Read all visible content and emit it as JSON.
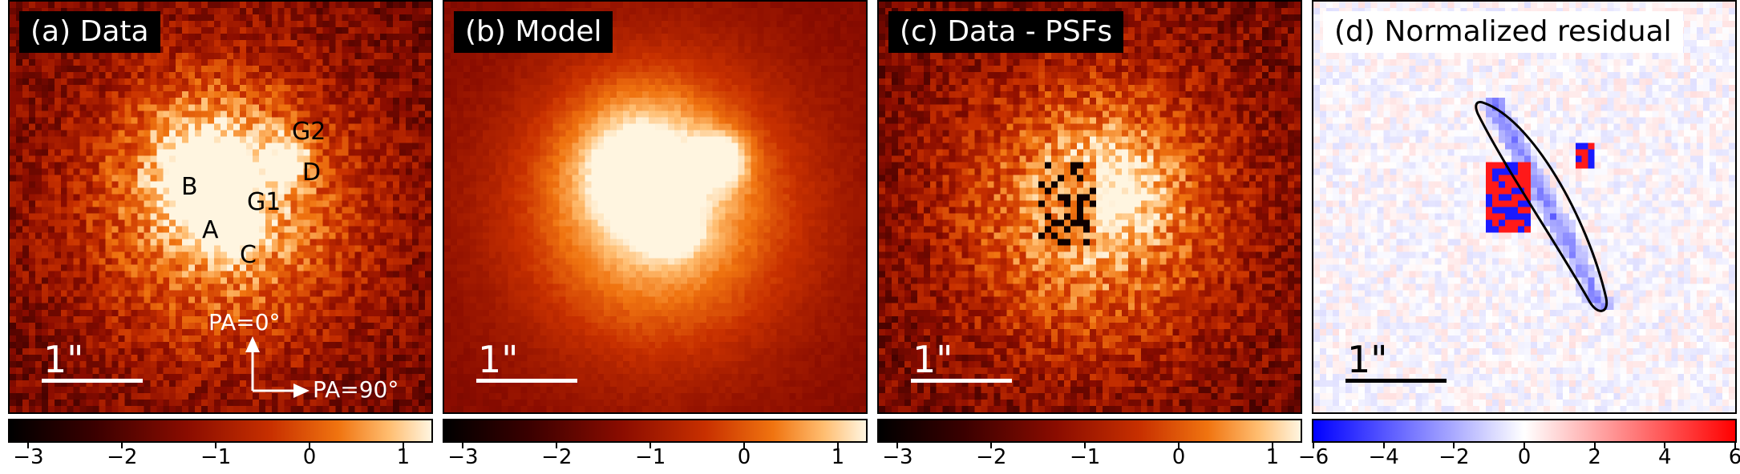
{
  "panels": [
    {
      "id": "a",
      "title": "(a) Data",
      "scale_label": "1\"",
      "cmap": "heat",
      "colorbar": {
        "min": -3.2,
        "max": 1.3,
        "ticks": [
          "−3",
          "−2",
          "−1",
          "0",
          "1"
        ],
        "tick_values": [
          -3,
          -2,
          -1,
          0,
          1
        ]
      }
    },
    {
      "id": "b",
      "title": "(b) Model",
      "scale_label": "1\"",
      "cmap": "heat",
      "colorbar": {
        "min": -3.2,
        "max": 1.3,
        "ticks": [
          "−3",
          "−2",
          "−1",
          "0",
          "1"
        ],
        "tick_values": [
          -3,
          -2,
          -1,
          0,
          1
        ]
      }
    },
    {
      "id": "c",
      "title": "(c) Data - PSFs",
      "scale_label": "1\"",
      "cmap": "heat",
      "colorbar": {
        "min": -3.2,
        "max": 1.3,
        "ticks": [
          "−3",
          "−2",
          "−1",
          "0",
          "1"
        ],
        "tick_values": [
          -3,
          -2,
          -1,
          0,
          1
        ]
      }
    },
    {
      "id": "d",
      "title": "(d) Normalized residual",
      "scale_label": "1\"",
      "cmap": "bwr",
      "colorbar": {
        "min": -6,
        "max": 6,
        "ticks": [
          "−6",
          "−4",
          "−2",
          "0",
          "2",
          "4",
          "6"
        ],
        "tick_values": [
          -6,
          -4,
          -2,
          0,
          2,
          4,
          6
        ]
      }
    }
  ],
  "annotations": {
    "G2": "G2",
    "D": "D",
    "B": "B",
    "G1": "G1",
    "A": "A",
    "C": "C",
    "pa0": "PA=0°",
    "pa90": "PA=90°"
  },
  "colors": {
    "heat_low": "#000000",
    "heat_mid": "#b01000",
    "heat_high": "#fff5e0",
    "resid_neg": "#0000ff",
    "resid_zero": "#ffffff",
    "resid_pos": "#ff0000"
  }
}
